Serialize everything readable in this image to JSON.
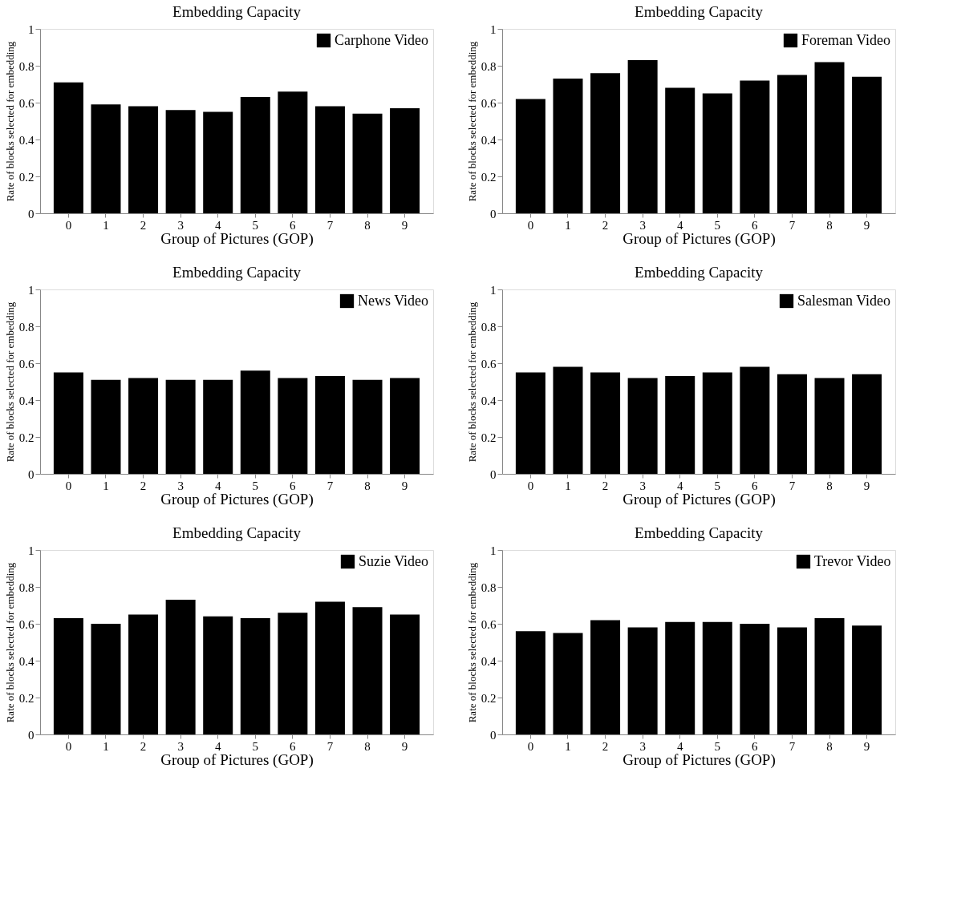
{
  "chart_data": [
    {
      "type": "bar",
      "title": "Embedding Capacity",
      "xlabel": "Group of Pictures (GOP)",
      "ylabel": "Rate of blocks selected for embedding",
      "categories": [
        "0",
        "1",
        "2",
        "3",
        "4",
        "5",
        "6",
        "7",
        "8",
        "9"
      ],
      "series": [
        {
          "name": "Carphone Video",
          "color": "#000000",
          "values": [
            0.71,
            0.59,
            0.58,
            0.56,
            0.55,
            0.63,
            0.66,
            0.58,
            0.54,
            0.57
          ]
        }
      ],
      "ylim": [
        0,
        1
      ],
      "yticks": [
        0,
        0.2,
        0.4,
        0.6,
        0.8,
        1
      ],
      "legend": "top right",
      "grid": false
    },
    {
      "type": "bar",
      "title": "Embedding Capacity",
      "xlabel": "Group of Pictures (GOP)",
      "ylabel": "Rate of blocks selected for embedding",
      "categories": [
        "0",
        "1",
        "2",
        "3",
        "4",
        "5",
        "6",
        "7",
        "8",
        "9"
      ],
      "series": [
        {
          "name": "Foreman Video",
          "color": "#000000",
          "values": [
            0.62,
            0.73,
            0.76,
            0.83,
            0.68,
            0.65,
            0.72,
            0.75,
            0.82,
            0.74
          ]
        }
      ],
      "ylim": [
        0,
        1
      ],
      "yticks": [
        0,
        0.2,
        0.4,
        0.6,
        0.8,
        1
      ],
      "legend": "top right",
      "grid": false
    },
    {
      "type": "bar",
      "title": "Embedding Capacity",
      "xlabel": "Group of Pictures (GOP)",
      "ylabel": "Rate of blocks selected for embedding",
      "categories": [
        "0",
        "1",
        "2",
        "3",
        "4",
        "5",
        "6",
        "7",
        "8",
        "9"
      ],
      "series": [
        {
          "name": "News Video",
          "color": "#000000",
          "values": [
            0.55,
            0.51,
            0.52,
            0.51,
            0.51,
            0.56,
            0.52,
            0.53,
            0.51,
            0.52
          ]
        }
      ],
      "ylim": [
        0,
        1
      ],
      "yticks": [
        0,
        0.2,
        0.4,
        0.6,
        0.8,
        1
      ],
      "legend": "top right",
      "grid": false
    },
    {
      "type": "bar",
      "title": "Embedding Capacity",
      "xlabel": "Group of Pictures (GOP)",
      "ylabel": "Rate of blocks selected for embedding",
      "categories": [
        "0",
        "1",
        "2",
        "3",
        "4",
        "5",
        "6",
        "7",
        "8",
        "9"
      ],
      "series": [
        {
          "name": "Salesman Video",
          "color": "#000000",
          "values": [
            0.55,
            0.58,
            0.55,
            0.52,
            0.53,
            0.55,
            0.58,
            0.54,
            0.52,
            0.54
          ]
        }
      ],
      "ylim": [
        0,
        1
      ],
      "yticks": [
        0,
        0.2,
        0.4,
        0.6,
        0.8,
        1
      ],
      "legend": "top right",
      "grid": false
    },
    {
      "type": "bar",
      "title": "Embedding Capacity",
      "xlabel": "Group of Pictures (GOP)",
      "ylabel": "Rate of blocks selected for embedding",
      "categories": [
        "0",
        "1",
        "2",
        "3",
        "4",
        "5",
        "6",
        "7",
        "8",
        "9"
      ],
      "series": [
        {
          "name": "Suzie Video",
          "color": "#000000",
          "values": [
            0.63,
            0.6,
            0.65,
            0.73,
            0.64,
            0.63,
            0.66,
            0.72,
            0.69,
            0.65
          ]
        }
      ],
      "ylim": [
        0,
        1
      ],
      "yticks": [
        0,
        0.2,
        0.4,
        0.6,
        0.8,
        1
      ],
      "legend": "top right",
      "grid": false
    },
    {
      "type": "bar",
      "title": "Embedding Capacity",
      "xlabel": "Group of Pictures (GOP)",
      "ylabel": "Rate of blocks selected for embedding",
      "categories": [
        "0",
        "1",
        "2",
        "3",
        "4",
        "5",
        "6",
        "7",
        "8",
        "9"
      ],
      "series": [
        {
          "name": "Trevor Video",
          "color": "#000000",
          "values": [
            0.56,
            0.55,
            0.62,
            0.58,
            0.61,
            0.61,
            0.6,
            0.58,
            0.63,
            0.59
          ]
        }
      ],
      "ylim": [
        0,
        1
      ],
      "yticks": [
        0,
        0.2,
        0.4,
        0.6,
        0.8,
        1
      ],
      "legend": "top right",
      "grid": false
    }
  ]
}
